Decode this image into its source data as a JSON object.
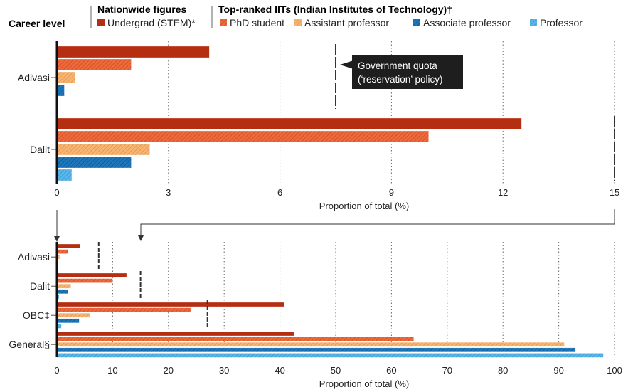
{
  "legend": {
    "career_level_label": "Career level",
    "group_nationwide_title": "Nationwide figures",
    "group_iit_title": "Top-ranked IITs (Indian Institutes of Technology)†",
    "items": [
      {
        "key": "ug",
        "label": "Undergrad (STEM)*",
        "color": "#b52e12",
        "hatched": false
      },
      {
        "key": "phd",
        "label": "PhD student",
        "color": "#ee6a3c",
        "hatched": true
      },
      {
        "key": "asst",
        "label": "Assistant professor",
        "color": "#f8b471",
        "hatched": true
      },
      {
        "key": "assoc",
        "label": "Associate professor",
        "color": "#1f77b9",
        "hatched": true
      },
      {
        "key": "prof",
        "label": "Professor",
        "color": "#5ab5ea",
        "hatched": true
      }
    ]
  },
  "callout": {
    "line1": "Government quota",
    "line2": "(‘reservation’ policy)"
  },
  "chart_data": [
    {
      "type": "bar",
      "orientation": "horizontal",
      "title": "",
      "xlabel": "Proportion of total (%)",
      "ylabel": "Career level",
      "xlim": [
        0,
        15
      ],
      "xticks": [
        0,
        3,
        6,
        9,
        12,
        15
      ],
      "grid": true,
      "categories": [
        "Adivasi",
        "Dalit"
      ],
      "series": [
        {
          "name": "Undergrad (STEM)*",
          "values": [
            4.1,
            12.5
          ]
        },
        {
          "name": "PhD student",
          "values": [
            2.0,
            10.0
          ]
        },
        {
          "name": "Assistant professor",
          "values": [
            0.5,
            2.5
          ]
        },
        {
          "name": "Associate professor",
          "values": [
            0.2,
            2.0
          ]
        },
        {
          "name": "Professor",
          "values": [
            0.0,
            0.4
          ]
        }
      ],
      "quota": [
        7.5,
        15
      ],
      "annotations": [
        "Government quota (‘reservation’ policy)"
      ]
    },
    {
      "type": "bar",
      "orientation": "horizontal",
      "title": "",
      "xlabel": "Proportion of total (%)",
      "ylabel": "",
      "xlim": [
        0,
        100
      ],
      "xticks": [
        0,
        10,
        20,
        30,
        40,
        50,
        60,
        70,
        80,
        90,
        100
      ],
      "grid": true,
      "categories": [
        "Adivasi",
        "Dalit",
        "OBC‡",
        "General§"
      ],
      "series": [
        {
          "name": "Undergrad (STEM)*",
          "values": [
            4.2,
            12.5,
            40.8,
            42.5
          ]
        },
        {
          "name": "PhD student",
          "values": [
            2.0,
            10.0,
            24.0,
            64.0
          ]
        },
        {
          "name": "Assistant professor",
          "values": [
            0.5,
            2.5,
            6.0,
            91.0
          ]
        },
        {
          "name": "Associate professor",
          "values": [
            0.2,
            2.0,
            4.0,
            93.0
          ]
        },
        {
          "name": "Professor",
          "values": [
            0.0,
            0.4,
            0.8,
            98.0
          ]
        }
      ],
      "quota": [
        7.5,
        15,
        27,
        null
      ]
    }
  ]
}
